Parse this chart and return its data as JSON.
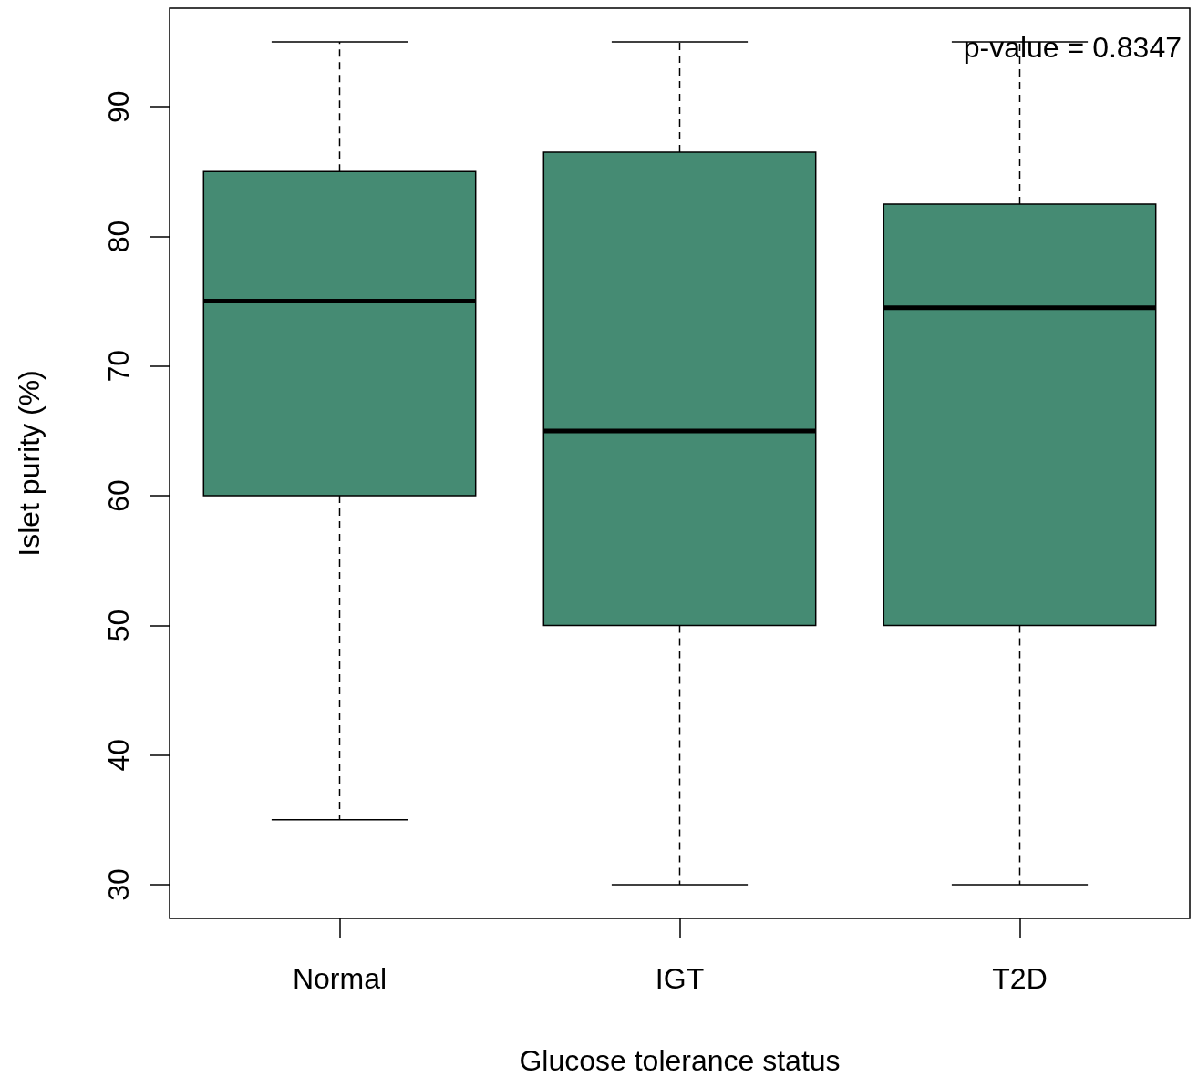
{
  "chart_data": {
    "type": "box",
    "xlabel": "Glucose tolerance status",
    "ylabel": "Islet purity (%)",
    "categories": [
      "Normal",
      "IGT",
      "T2D"
    ],
    "color": "#458b73",
    "boxes": [
      {
        "low": 35,
        "q1": 60,
        "median": 75,
        "q3": 85,
        "high": 95
      },
      {
        "low": 30,
        "q1": 50,
        "median": 65,
        "q3": 86.5,
        "high": 95
      },
      {
        "low": 30,
        "q1": 50,
        "median": 74.5,
        "q3": 82.5,
        "high": 95
      }
    ],
    "ylim": [
      27.4,
      97.6
    ],
    "yticks": [
      30,
      40,
      50,
      60,
      70,
      80,
      90
    ],
    "annotations": [
      "p-value = 0.8347"
    ]
  }
}
